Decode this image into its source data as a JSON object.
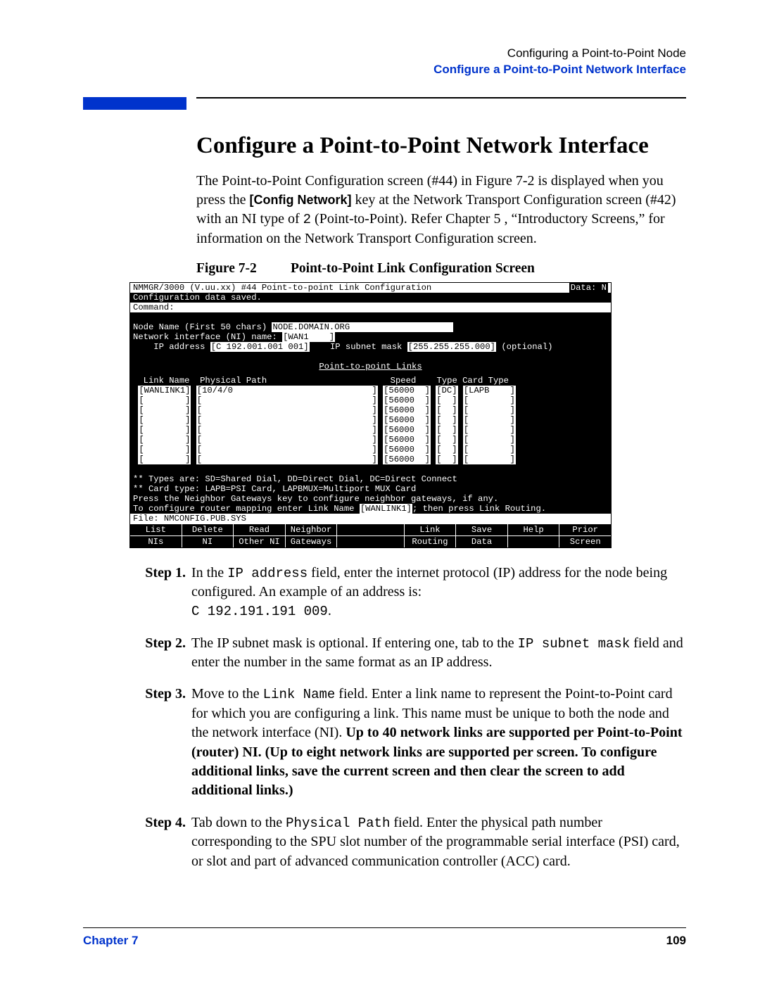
{
  "header": {
    "line1": "Configuring a Point-to-Point Node",
    "line2": "Configure a Point-to-Point Network Interface"
  },
  "title": "Configure a Point-to-Point Network Interface",
  "intro": {
    "p1a": "The Point-to-Point Configuration screen (#44) in Figure 7-2 is displayed when you press the ",
    "p1b": "[Config Network]",
    "p1c": " key at the Network Transport Configuration screen (#42) with an NI type of ",
    "p1d": "2",
    "p1e": " (Point-to-Point). Refer Chapter 5 , “Introductory Screens,” for information on the Network Transport Configuration screen."
  },
  "figure": {
    "num": "Figure 7-2",
    "title": "Point-to-Point Link Configuration Screen"
  },
  "term": {
    "title_left": "NMMGR/3000 (V.uu.xx) #44  Point-to-point Link Configuration",
    "title_right": "Data: N",
    "saved": "Configuration data saved.",
    "cmd_label": "Command:",
    "node_label": "Node Name (First 50 chars) ",
    "node_val": "NODE.DOMAIN.ORG                    ",
    "ni_label": "Network interface (NI) name: ",
    "ni_val": "[WAN1    ]",
    "ip_label": "    IP address ",
    "ip_val": "[C 192.001.001 001]",
    "mask_label": "    IP subnet mask ",
    "mask_val": "[255.255.255.000]",
    "mask_opt": " (optional)",
    "links_title": "Point-to-point Links",
    "cols": "  Link Name  Physical Path                        Speed    Type Card Type",
    "rows": [
      {
        "ln": "[WANLINK1]",
        "pp": "[10/4/0                           ]",
        "sp": "[56000  ]",
        "ty": "[DC]",
        "ct": "[LAPB    ]"
      },
      {
        "ln": "[        ]",
        "pp": "[                                 ]",
        "sp": "[56000  ]",
        "ty": "[  ]",
        "ct": "[        ]"
      },
      {
        "ln": "[        ]",
        "pp": "[                                 ]",
        "sp": "[56000  ]",
        "ty": "[  ]",
        "ct": "[        ]"
      },
      {
        "ln": "[        ]",
        "pp": "[                                 ]",
        "sp": "[56000  ]",
        "ty": "[  ]",
        "ct": "[        ]"
      },
      {
        "ln": "[        ]",
        "pp": "[                                 ]",
        "sp": "[56000  ]",
        "ty": "[  ]",
        "ct": "[        ]"
      },
      {
        "ln": "[        ]",
        "pp": "[                                 ]",
        "sp": "[56000  ]",
        "ty": "[  ]",
        "ct": "[        ]"
      },
      {
        "ln": "[        ]",
        "pp": "[                                 ]",
        "sp": "[56000  ]",
        "ty": "[  ]",
        "ct": "[        ]"
      },
      {
        "ln": "[        ]",
        "pp": "[                                 ]",
        "sp": "[56000  ]",
        "ty": "[  ]",
        "ct": "[        ]"
      }
    ],
    "note1": "** Types are: SD=Shared Dial, DD=Direct Dial, DC=Direct Connect",
    "note2": "** Card type: LAPB=PSI Card, LAPBMUX=Multiport MUX Card",
    "note3": "Press the Neighbor Gateways key to configure neighbor gateways, if any.",
    "note4a": "To configure router mapping enter Link Name ",
    "note4b": "[WANLINK1]",
    "note4c": "; then press Link Routing.",
    "file": "File:   NMCONFIG.PUB.SYS",
    "fn": {
      "r1": [
        "List",
        "Delete",
        "Read",
        "Neighbor",
        "",
        "Link",
        "Save",
        "Help",
        "Prior"
      ],
      "r2": [
        "NIs",
        "NI",
        "Other NI",
        "Gateways",
        "",
        "Routing",
        "Data",
        "",
        "Screen"
      ]
    }
  },
  "steps": [
    {
      "label": "Step 1.",
      "parts": [
        {
          "t": "In the "
        },
        {
          "t": "IP address",
          "m": true
        },
        {
          "t": " field, enter the internet protocol (IP) address for the node being configured. An example of an address is:"
        },
        {
          "br": true
        },
        {
          "t": "C 192.191.191 009",
          "m": true
        },
        {
          "t": "."
        }
      ]
    },
    {
      "label": "Step 2.",
      "parts": [
        {
          "t": "The IP subnet mask is optional. If entering one, tab to the "
        },
        {
          "t": "IP subnet mask",
          "m": true
        },
        {
          "t": " field and enter the number in the same format as an IP address."
        }
      ]
    },
    {
      "label": "Step 3.",
      "parts": [
        {
          "t": "Move to the "
        },
        {
          "t": "Link Name",
          "m": true
        },
        {
          "t": " field. Enter a link name to represent the Point-to-Point card for which you are configuring a link. This name must be unique to both the node and the network interface (NI). "
        },
        {
          "t": "Up to 40 network links are supported per Point-to-Point (router) NI. (Up to eight network links are supported per screen. To configure additional links, save the current screen and then clear the screen to add additional links.)",
          "b": true
        }
      ]
    },
    {
      "label": "Step 4.",
      "parts": [
        {
          "t": "Tab down to the "
        },
        {
          "t": "Physical Path",
          "m": true
        },
        {
          "t": " field. Enter the physical path number corresponding to the SPU slot number of the programmable serial interface (PSI) card, or slot and part of advanced communication controller (ACC) card."
        }
      ]
    }
  ],
  "footer": {
    "chapter": "Chapter 7",
    "page": "109"
  },
  "colors": {
    "blue": "#0033cc",
    "black": "#000000",
    "white": "#ffffff"
  }
}
